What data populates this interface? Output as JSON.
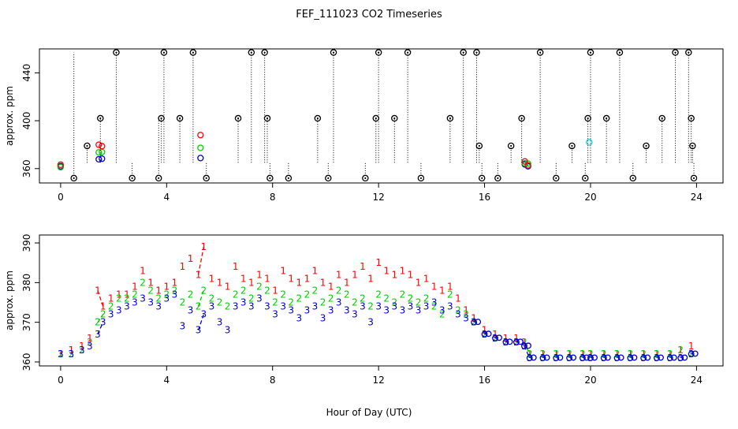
{
  "title": "FEF_111023  CO2 Timeseries",
  "xlabel": "Hour of Day (UTC)",
  "colors": {
    "s1": "#ff0000",
    "s2": "#00cc00",
    "s3": "#0000cc",
    "raw": "#000000",
    "cyan": "#00dddd"
  },
  "chart_data": [
    {
      "type": "scatter",
      "ylabel": "approx. ppm",
      "xlim": [
        -0.8,
        25
      ],
      "ylim": [
        348,
        460
      ],
      "xticks": [
        "0",
        "4",
        "8",
        "12",
        "16",
        "20",
        "24"
      ],
      "yticks": [
        "360",
        "400",
        "440"
      ],
      "grid": false,
      "raw_markers": [
        {
          "x": 0.5,
          "y": 352,
          "top": 457
        },
        {
          "x": 1.0,
          "y": 379
        },
        {
          "x": 1.5,
          "y": 402
        },
        {
          "x": 2.1,
          "y": 457
        },
        {
          "x": 2.7,
          "y": 352
        },
        {
          "x": 3.7,
          "y": 352,
          "top": 402
        },
        {
          "x": 3.8,
          "y": 402
        },
        {
          "x": 3.9,
          "y": 457
        },
        {
          "x": 4.5,
          "y": 402
        },
        {
          "x": 5.0,
          "y": 457
        },
        {
          "x": 5.5,
          "y": 352
        },
        {
          "x": 6.7,
          "y": 402
        },
        {
          "x": 7.2,
          "y": 457
        },
        {
          "x": 7.7,
          "y": 457
        },
        {
          "x": 7.8,
          "y": 402
        },
        {
          "x": 7.9,
          "y": 352
        },
        {
          "x": 8.6,
          "y": 352
        },
        {
          "x": 9.7,
          "y": 402
        },
        {
          "x": 10.1,
          "y": 352
        },
        {
          "x": 10.3,
          "y": 457
        },
        {
          "x": 11.5,
          "y": 352
        },
        {
          "x": 11.9,
          "y": 402
        },
        {
          "x": 12.0,
          "y": 457
        },
        {
          "x": 12.6,
          "y": 402
        },
        {
          "x": 13.1,
          "y": 457
        },
        {
          "x": 13.6,
          "y": 352
        },
        {
          "x": 14.7,
          "y": 402
        },
        {
          "x": 15.2,
          "y": 457
        },
        {
          "x": 15.7,
          "y": 457
        },
        {
          "x": 15.8,
          "y": 379
        },
        {
          "x": 15.9,
          "y": 352
        },
        {
          "x": 16.5,
          "y": 352
        },
        {
          "x": 17.0,
          "y": 379
        },
        {
          "x": 17.4,
          "y": 402
        },
        {
          "x": 18.1,
          "y": 457
        },
        {
          "x": 18.7,
          "y": 352
        },
        {
          "x": 19.3,
          "y": 379
        },
        {
          "x": 19.8,
          "y": 352
        },
        {
          "x": 19.9,
          "y": 402
        },
        {
          "x": 20.0,
          "y": 457
        },
        {
          "x": 20.6,
          "y": 402
        },
        {
          "x": 21.1,
          "y": 457
        },
        {
          "x": 21.6,
          "y": 352
        },
        {
          "x": 22.1,
          "y": 379
        },
        {
          "x": 22.7,
          "y": 402
        },
        {
          "x": 23.2,
          "y": 457
        },
        {
          "x": 23.7,
          "y": 457
        },
        {
          "x": 23.8,
          "y": 402
        },
        {
          "x": 23.85,
          "y": 379
        },
        {
          "x": 23.9,
          "y": 352
        }
      ],
      "extra_markers": [
        {
          "x": 19.95,
          "y": 382,
          "color": "cyan"
        }
      ]
    },
    {
      "type": "line",
      "ylabel": "approx. ppm",
      "xlim": [
        -0.8,
        25
      ],
      "ylim": [
        359,
        392
      ],
      "xticks": [
        "0",
        "4",
        "8",
        "12",
        "16",
        "20",
        "24"
      ],
      "yticks": [
        "360",
        "370",
        "380",
        "390"
      ],
      "grid": false,
      "series": [
        {
          "name": "1",
          "color": "s1",
          "points": [
            [
              0,
              362
            ],
            [
              0.4,
              363
            ],
            [
              0.8,
              364
            ],
            [
              1.1,
              366
            ],
            [
              1.4,
              378
            ],
            [
              1.6,
              374
            ],
            [
              1.9,
              376
            ],
            [
              2.2,
              377
            ],
            [
              2.5,
              377
            ],
            [
              2.8,
              379
            ],
            [
              3.1,
              383
            ],
            [
              3.4,
              380
            ],
            [
              3.7,
              378
            ],
            [
              4.0,
              379
            ],
            [
              4.3,
              380
            ],
            [
              4.6,
              384
            ],
            [
              4.9,
              386
            ],
            [
              5.2,
              382
            ],
            [
              5.4,
              389
            ],
            [
              5.7,
              381
            ],
            [
              6.0,
              380
            ],
            [
              6.3,
              379
            ],
            [
              6.6,
              384
            ],
            [
              6.9,
              381
            ],
            [
              7.2,
              380
            ],
            [
              7.5,
              382
            ],
            [
              7.8,
              381
            ],
            [
              8.1,
              378
            ],
            [
              8.4,
              383
            ],
            [
              8.7,
              381
            ],
            [
              9.0,
              380
            ],
            [
              9.3,
              381
            ],
            [
              9.6,
              383
            ],
            [
              9.9,
              380
            ],
            [
              10.2,
              379
            ],
            [
              10.5,
              382
            ],
            [
              10.8,
              380
            ],
            [
              11.1,
              382
            ],
            [
              11.4,
              384
            ],
            [
              11.7,
              381
            ],
            [
              12.0,
              385
            ],
            [
              12.3,
              383
            ],
            [
              12.6,
              382
            ],
            [
              12.9,
              383
            ],
            [
              13.2,
              382
            ],
            [
              13.5,
              380
            ],
            [
              13.8,
              381
            ],
            [
              14.1,
              379
            ],
            [
              14.4,
              378
            ],
            [
              14.7,
              379
            ],
            [
              15.0,
              376
            ],
            [
              15.3,
              373
            ],
            [
              15.6,
              371
            ],
            [
              16.0,
              368
            ],
            [
              16.4,
              367
            ],
            [
              16.8,
              366
            ],
            [
              17.2,
              366
            ],
            [
              17.5,
              365
            ],
            [
              17.7,
              362
            ],
            [
              18.2,
              362
            ],
            [
              18.7,
              362
            ],
            [
              19.2,
              362
            ],
            [
              19.7,
              362
            ],
            [
              20.0,
              362
            ],
            [
              20.5,
              362
            ],
            [
              21.0,
              362
            ],
            [
              21.5,
              362
            ],
            [
              22.0,
              362
            ],
            [
              22.5,
              362
            ],
            [
              23.0,
              362
            ],
            [
              23.4,
              363
            ],
            [
              23.8,
              364
            ]
          ]
        },
        {
          "name": "2",
          "color": "s2",
          "points": [
            [
              0,
              362
            ],
            [
              0.4,
              362
            ],
            [
              0.8,
              363
            ],
            [
              1.1,
              365
            ],
            [
              1.4,
              370
            ],
            [
              1.6,
              372
            ],
            [
              1.9,
              374
            ],
            [
              2.2,
              376
            ],
            [
              2.5,
              376
            ],
            [
              2.8,
              377
            ],
            [
              3.1,
              380
            ],
            [
              3.4,
              378
            ],
            [
              3.7,
              376
            ],
            [
              4.0,
              377
            ],
            [
              4.3,
              378
            ],
            [
              4.6,
              375
            ],
            [
              4.9,
              377
            ],
            [
              5.2,
              374
            ],
            [
              5.4,
              378
            ],
            [
              5.7,
              376
            ],
            [
              6.0,
              375
            ],
            [
              6.3,
              374
            ],
            [
              6.6,
              377
            ],
            [
              6.9,
              378
            ],
            [
              7.2,
              376
            ],
            [
              7.5,
              379
            ],
            [
              7.8,
              378
            ],
            [
              8.1,
              375
            ],
            [
              8.4,
              377
            ],
            [
              8.7,
              375
            ],
            [
              9.0,
              376
            ],
            [
              9.3,
              377
            ],
            [
              9.6,
              378
            ],
            [
              9.9,
              375
            ],
            [
              10.2,
              376
            ],
            [
              10.5,
              378
            ],
            [
              10.8,
              377
            ],
            [
              11.1,
              375
            ],
            [
              11.4,
              376
            ],
            [
              11.7,
              374
            ],
            [
              12.0,
              377
            ],
            [
              12.3,
              376
            ],
            [
              12.6,
              375
            ],
            [
              12.9,
              377
            ],
            [
              13.2,
              376
            ],
            [
              13.5,
              375
            ],
            [
              13.8,
              376
            ],
            [
              14.1,
              374
            ],
            [
              14.4,
              372
            ],
            [
              14.7,
              377
            ],
            [
              15.0,
              373
            ],
            [
              15.3,
              372
            ],
            [
              15.6,
              370
            ],
            [
              16.0,
              367
            ],
            [
              16.4,
              366
            ],
            [
              16.8,
              365
            ],
            [
              17.2,
              365
            ],
            [
              17.5,
              365
            ],
            [
              17.7,
              362
            ],
            [
              18.2,
              362
            ],
            [
              18.7,
              362
            ],
            [
              19.2,
              362
            ],
            [
              19.7,
              362
            ],
            [
              20.0,
              362
            ],
            [
              20.5,
              362
            ],
            [
              21.0,
              362
            ],
            [
              21.5,
              362
            ],
            [
              22.0,
              362
            ],
            [
              22.5,
              362
            ],
            [
              23.0,
              362
            ],
            [
              23.4,
              363
            ],
            [
              23.8,
              362
            ]
          ]
        },
        {
          "name": "3",
          "color": "s3",
          "points": [
            [
              0,
              362
            ],
            [
              0.4,
              362
            ],
            [
              0.8,
              363
            ],
            [
              1.1,
              364
            ],
            [
              1.4,
              367
            ],
            [
              1.6,
              370
            ],
            [
              1.9,
              372
            ],
            [
              2.2,
              373
            ],
            [
              2.5,
              374
            ],
            [
              2.8,
              375
            ],
            [
              3.1,
              376
            ],
            [
              3.4,
              375
            ],
            [
              3.7,
              374
            ],
            [
              4.0,
              376
            ],
            [
              4.3,
              377
            ],
            [
              4.6,
              369
            ],
            [
              4.9,
              373
            ],
            [
              5.2,
              368
            ],
            [
              5.4,
              372
            ],
            [
              5.7,
              374
            ],
            [
              6.0,
              370
            ],
            [
              6.3,
              368
            ],
            [
              6.6,
              374
            ],
            [
              6.9,
              375
            ],
            [
              7.2,
              374
            ],
            [
              7.5,
              376
            ],
            [
              7.8,
              374
            ],
            [
              8.1,
              372
            ],
            [
              8.4,
              374
            ],
            [
              8.7,
              373
            ],
            [
              9.0,
              371
            ],
            [
              9.3,
              373
            ],
            [
              9.6,
              374
            ],
            [
              9.9,
              371
            ],
            [
              10.2,
              373
            ],
            [
              10.5,
              375
            ],
            [
              10.8,
              373
            ],
            [
              11.1,
              372
            ],
            [
              11.4,
              374
            ],
            [
              11.7,
              370
            ],
            [
              12.0,
              374
            ],
            [
              12.3,
              373
            ],
            [
              12.6,
              374
            ],
            [
              12.9,
              373
            ],
            [
              13.2,
              374
            ],
            [
              13.5,
              373
            ],
            [
              13.8,
              374
            ],
            [
              14.1,
              375
            ],
            [
              14.4,
              373
            ],
            [
              14.7,
              374
            ],
            [
              15.0,
              372
            ],
            [
              15.3,
              371
            ],
            [
              15.6,
              370
            ],
            [
              16.0,
              367
            ],
            [
              16.4,
              366
            ],
            [
              16.8,
              365
            ],
            [
              17.2,
              365
            ],
            [
              17.5,
              364
            ],
            [
              17.7,
              361
            ],
            [
              18.2,
              361
            ],
            [
              18.7,
              361
            ],
            [
              19.2,
              361
            ],
            [
              19.7,
              361
            ],
            [
              20.0,
              361
            ],
            [
              20.5,
              361
            ],
            [
              21.0,
              361
            ],
            [
              21.5,
              361
            ],
            [
              22.0,
              361
            ],
            [
              22.5,
              361
            ],
            [
              23.0,
              361
            ],
            [
              23.4,
              361
            ],
            [
              23.8,
              362
            ]
          ]
        }
      ]
    }
  ]
}
